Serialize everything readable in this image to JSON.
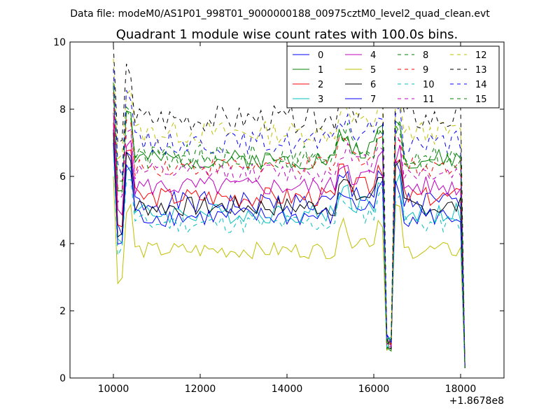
{
  "suptitle": "Data file: modeM0/AS1P01_998T01_9000000188_00975cztM0_level2_quad_clean.evt",
  "chart_data": {
    "type": "line",
    "title": "Quadrant 1 module wise count rates with 100.0s bins.",
    "xlabel": "",
    "ylabel": "",
    "x_offset_label": "+1.8678e8",
    "xlim": [
      9000,
      19000
    ],
    "ylim": [
      0,
      10
    ],
    "xticks": [
      10000,
      12000,
      14000,
      16000,
      18000
    ],
    "yticks": [
      0,
      2,
      4,
      6,
      8,
      10
    ],
    "grid": false,
    "legend_position": "top-right",
    "series": [
      {
        "name": "0",
        "color": "#0000ff",
        "dash": "solid",
        "base": 5.2,
        "wave": 0.35,
        "seed": 1
      },
      {
        "name": "1",
        "color": "#008000",
        "dash": "solid",
        "base": 6.5,
        "wave": 0.3,
        "seed": 2
      },
      {
        "name": "2",
        "color": "#ff0000",
        "dash": "solid",
        "base": 5.4,
        "wave": 0.3,
        "seed": 3
      },
      {
        "name": "3",
        "color": "#00bfbf",
        "dash": "solid",
        "base": 4.9,
        "wave": 0.3,
        "seed": 4
      },
      {
        "name": "4",
        "color": "#bf00bf",
        "dash": "solid",
        "base": 5.7,
        "wave": 0.3,
        "seed": 5
      },
      {
        "name": "5",
        "color": "#bfbf00",
        "dash": "solid",
        "base": 3.8,
        "wave": 0.25,
        "seed": 6
      },
      {
        "name": "6",
        "color": "#000000",
        "dash": "solid",
        "base": 5.1,
        "wave": 0.3,
        "seed": 7
      },
      {
        "name": "7",
        "color": "#0000ff",
        "dash": "solid",
        "base": 4.8,
        "wave": 0.3,
        "seed": 8
      },
      {
        "name": "8",
        "color": "#008000",
        "dash": "dashed",
        "base": 6.6,
        "wave": 0.35,
        "seed": 9
      },
      {
        "name": "9",
        "color": "#ff0000",
        "dash": "dashed",
        "base": 6.3,
        "wave": 0.3,
        "seed": 10
      },
      {
        "name": "10",
        "color": "#00bfbf",
        "dash": "dashed",
        "base": 4.6,
        "wave": 0.3,
        "seed": 11
      },
      {
        "name": "11",
        "color": "#bf00bf",
        "dash": "dashed",
        "base": 6.1,
        "wave": 0.3,
        "seed": 12
      },
      {
        "name": "12",
        "color": "#bfbf00",
        "dash": "dashed",
        "base": 7.3,
        "wave": 0.35,
        "seed": 13
      },
      {
        "name": "13",
        "color": "#000000",
        "dash": "dashed",
        "base": 7.7,
        "wave": 0.4,
        "seed": 14
      },
      {
        "name": "14",
        "color": "#0000ff",
        "dash": "dashed",
        "base": 7.0,
        "wave": 0.35,
        "seed": 15
      },
      {
        "name": "15",
        "color": "#008000",
        "dash": "dashed",
        "base": 6.5,
        "wave": 0.3,
        "seed": 16
      }
    ]
  }
}
